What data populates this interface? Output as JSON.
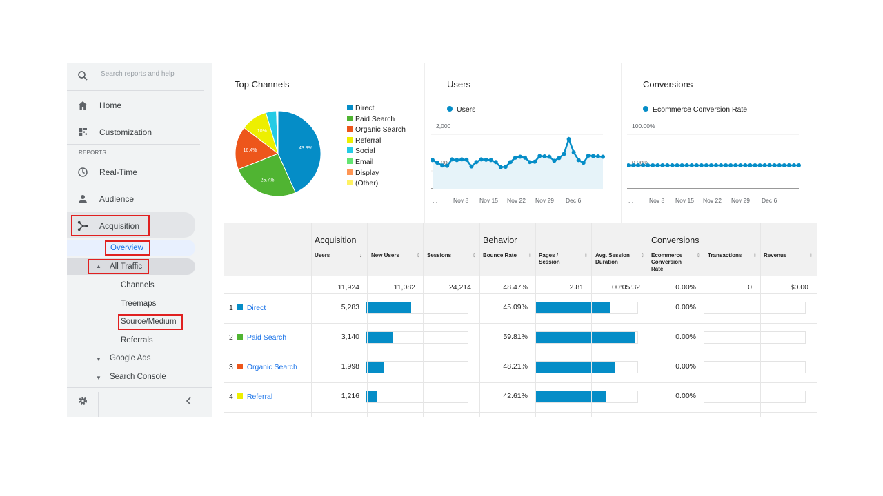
{
  "sidebar": {
    "search_placeholder": "Search reports and help",
    "home": "Home",
    "customization": "Customization",
    "reports_section": "REPORTS",
    "realtime": "Real-Time",
    "audience": "Audience",
    "acquisition": "Acquisition",
    "overview": "Overview",
    "all_traffic": "All Traffic",
    "channels": "Channels",
    "treemaps": "Treemaps",
    "source_medium": "Source/Medium",
    "referrals": "Referrals",
    "google_ads": "Google Ads",
    "search_console": "Search Console"
  },
  "top_channels": {
    "title": "Top Channels",
    "legend": [
      {
        "label": "Direct",
        "color": "#058dc7"
      },
      {
        "label": "Paid Search",
        "color": "#50b432"
      },
      {
        "label": "Organic Search",
        "color": "#ed561b"
      },
      {
        "label": "Referral",
        "color": "#edef00"
      },
      {
        "label": "Social",
        "color": "#24cbe5"
      },
      {
        "label": "Email",
        "color": "#64e572"
      },
      {
        "label": "Display",
        "color": "#ff9655"
      },
      {
        "label": "(Other)",
        "color": "#fff263"
      }
    ],
    "pie_labels": {
      "direct": "43.3%",
      "paid": "25.7%",
      "organic": "16.4%",
      "referral": "10%"
    }
  },
  "chart_data": [
    {
      "type": "pie",
      "title": "Top Channels",
      "categories": [
        "Direct",
        "Paid Search",
        "Organic Search",
        "Referral",
        "Social",
        "Email",
        "Display",
        "(Other)"
      ],
      "values": [
        43.3,
        25.7,
        16.4,
        10.0,
        4.0,
        0.4,
        0.1,
        0.1
      ]
    },
    {
      "type": "line",
      "title": "Users",
      "series": [
        {
          "name": "Users",
          "values": [
            850,
            770,
            690,
            680,
            870,
            850,
            870,
            860,
            660,
            790,
            870,
            860,
            850,
            790,
            640,
            650,
            790,
            920,
            950,
            920,
            790,
            800,
            970,
            960,
            950,
            830,
            910,
            1030,
            1470,
            1080,
            850,
            770,
            980,
            970,
            960,
            950
          ]
        }
      ],
      "x_ticks": [
        "...",
        "Nov 8",
        "Nov 15",
        "Nov 22",
        "Nov 29",
        "Dec 6"
      ],
      "y_ticks": [
        "2,000",
        "1,000"
      ],
      "ylim": [
        0,
        2000
      ]
    },
    {
      "type": "line",
      "title": "Conversions",
      "series": [
        {
          "name": "Ecommerce Conversion Rate",
          "values": [
            0,
            0,
            0,
            0,
            0,
            0,
            0,
            0,
            0,
            0,
            0,
            0,
            0,
            0,
            0,
            0,
            0,
            0,
            0,
            0,
            0,
            0,
            0,
            0,
            0,
            0,
            0,
            0,
            0,
            0,
            0,
            0,
            0,
            0,
            0,
            0
          ]
        }
      ],
      "x_ticks": [
        "...",
        "Nov 8",
        "Nov 15",
        "Nov 22",
        "Nov 29",
        "Dec 6"
      ],
      "y_ticks": [
        "100.00%",
        "0.00%"
      ],
      "ylim": [
        0,
        100
      ]
    }
  ],
  "users_panel": {
    "title": "Users",
    "legend": "Users",
    "y_top": "2,000",
    "y_mid": "1,000",
    "x_ticks": [
      "...",
      "Nov 8",
      "Nov 15",
      "Nov 22",
      "Nov 29",
      "Dec 6"
    ]
  },
  "conversions_panel": {
    "title": "Conversions",
    "legend": "Ecommerce Conversion Rate",
    "y_top": "100.00%",
    "y_zero": "0.00%",
    "x_ticks": [
      "...",
      "Nov 8",
      "Nov 15",
      "Nov 22",
      "Nov 29",
      "Dec 6"
    ]
  },
  "table": {
    "groups": {
      "acquisition": "Acquisition",
      "behavior": "Behavior",
      "conversions": "Conversions"
    },
    "columns": {
      "users": "Users",
      "new_users": "New Users",
      "sessions": "Sessions",
      "bounce_rate": "Bounce Rate",
      "pages_session_1": "Pages /",
      "pages_session_2": "Session",
      "avg_duration_1": "Avg. Session",
      "avg_duration_2": "Duration",
      "ecr_1": "Ecommerce",
      "ecr_2": "Conversion",
      "ecr_3": "Rate",
      "transactions": "Transactions",
      "revenue": "Revenue"
    },
    "totals": {
      "users": "11,924",
      "new_users": "11,082",
      "sessions": "24,214",
      "bounce_rate": "48.47%",
      "pages_session": "2.81",
      "avg_duration": "00:05:32",
      "ecr": "0.00%",
      "transactions": "0",
      "revenue": "$0.00"
    },
    "rows": [
      {
        "num": "1",
        "name": "Direct",
        "color": "#058dc7",
        "users": "5,283",
        "users_fraction": 0.443,
        "bounce_rate": "45.09%",
        "bounce_fraction": 0.7535,
        "ecr": "0.00%"
      },
      {
        "num": "2",
        "name": "Paid Search",
        "color": "#50b432",
        "users": "3,140",
        "users_fraction": 0.263,
        "bounce_rate": "59.81%",
        "bounce_fraction": 1.0,
        "ecr": "0.00%"
      },
      {
        "num": "3",
        "name": "Organic Search",
        "color": "#ed561b",
        "users": "1,998",
        "users_fraction": 0.168,
        "bounce_rate": "48.21%",
        "bounce_fraction": 0.806,
        "ecr": "0.00%"
      },
      {
        "num": "4",
        "name": "Referral",
        "color": "#edef00",
        "users": "1,216",
        "users_fraction": 0.102,
        "bounce_rate": "42.61%",
        "bounce_fraction": 0.712,
        "ecr": "0.00%"
      }
    ]
  }
}
